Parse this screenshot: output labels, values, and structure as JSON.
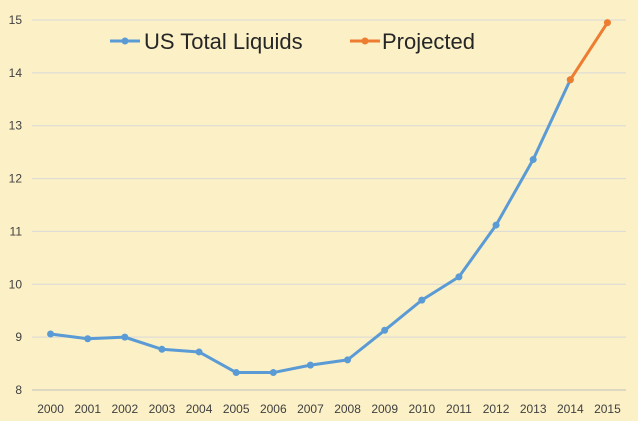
{
  "chart_data": {
    "type": "line",
    "title": "",
    "xlabel": "",
    "ylabel": "",
    "x": [
      "2000",
      "2001",
      "2002",
      "2003",
      "2004",
      "2005",
      "2006",
      "2007",
      "2008",
      "2009",
      "2010",
      "2011",
      "2012",
      "2013",
      "2014",
      "2015"
    ],
    "y_ticks": [
      "8",
      "9",
      "10",
      "11",
      "12",
      "13",
      "14",
      "15"
    ],
    "ylim": [
      8,
      15
    ],
    "grid": "horizontal",
    "legend_position": "top",
    "series": [
      {
        "name": "US Total Liquids",
        "color": "#5b9bd5",
        "x": [
          "2000",
          "2001",
          "2002",
          "2003",
          "2004",
          "2005",
          "2006",
          "2007",
          "2008",
          "2009",
          "2010",
          "2011",
          "2012",
          "2013",
          "2014"
        ],
        "values": [
          9.06,
          8.97,
          9.0,
          8.77,
          8.72,
          8.33,
          8.33,
          8.47,
          8.57,
          9.13,
          9.7,
          10.14,
          11.12,
          12.36,
          13.87
        ]
      },
      {
        "name": "Projected",
        "color": "#ed7d31",
        "x": [
          "2014",
          "2015"
        ],
        "values": [
          13.87,
          14.95
        ]
      }
    ]
  }
}
